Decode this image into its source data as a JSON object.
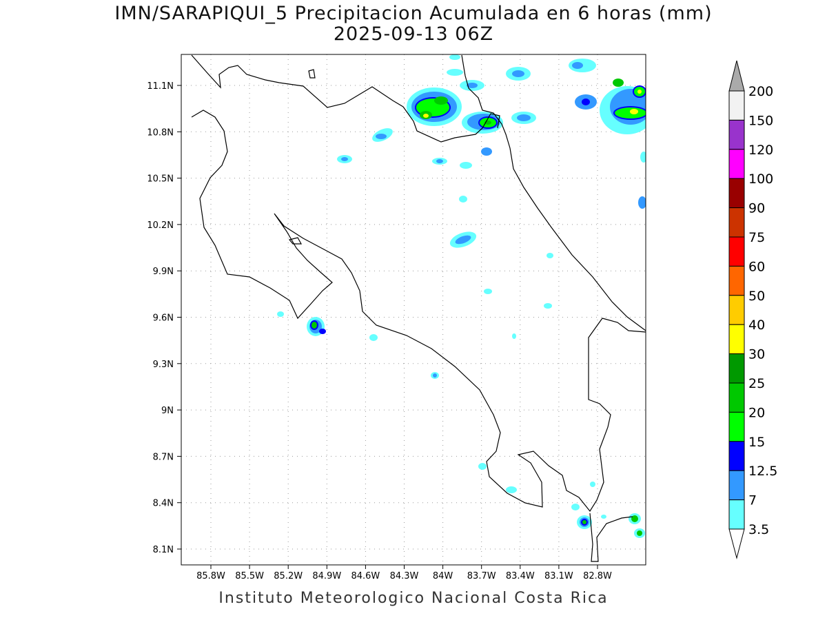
{
  "title": "IMN/SARAPIQUI_5 Precipitacion Acumulada en 6 horas (mm)",
  "subtitle": "2025-09-13 06Z",
  "footer": "Instituto Meteorologico Nacional Costa Rica",
  "axes": {
    "lat_labels": [
      "11.1N",
      "10.8N",
      "10.5N",
      "10.2N",
      "9.9N",
      "9.6N",
      "9.3N",
      "9N",
      "8.7N",
      "8.4N",
      "8.1N"
    ],
    "lon_labels": [
      "85.8W",
      "85.5W",
      "85.2W",
      "84.9W",
      "84.6W",
      "84.3W",
      "84W",
      "83.7W",
      "83.4W",
      "83.1W",
      "82.8W"
    ]
  },
  "colorbar": {
    "labels": [
      "200",
      "150",
      "120",
      "100",
      "90",
      "75",
      "60",
      "50",
      "40",
      "30",
      "25",
      "20",
      "15",
      "12.5",
      "7",
      "3.5"
    ],
    "colors": [
      "#f2f2f2",
      "#9933cc",
      "#ff00ff",
      "#990000",
      "#cc3300",
      "#ff0000",
      "#ff6600",
      "#ffcc00",
      "#ffff00",
      "#009900",
      "#00c800",
      "#00ff00",
      "#0000ff",
      "#3399ff",
      "#66ffff"
    ],
    "over_color": "#aaaaaa",
    "under_color": "#ffffff"
  }
}
